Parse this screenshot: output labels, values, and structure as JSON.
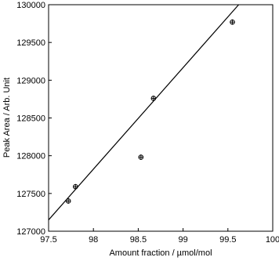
{
  "chart_data": {
    "type": "scatter",
    "xlabel": "Amount fraction / µmol/mol",
    "ylabel": "Peak Area / Arb. Unit",
    "xlim": [
      97.5,
      100
    ],
    "xticks": [
      97.5,
      98,
      98.5,
      99,
      99.5,
      100
    ],
    "ylim": [
      127000,
      130000
    ],
    "yticks": [
      127000,
      127500,
      128000,
      128500,
      129000,
      129500,
      130000
    ],
    "grid": false,
    "series": [
      {
        "type": "scatter",
        "color": "#000000",
        "x": [
          97.72,
          97.8,
          98.53,
          98.67,
          99.55
        ],
        "values": [
          127400,
          127590,
          127980,
          128760,
          129770
        ],
        "xerr": [
          0.02,
          0.02,
          0.02,
          0.02,
          0.02
        ],
        "yerr": [
          35,
          35,
          35,
          35,
          35
        ]
      },
      {
        "type": "line",
        "color": "#000000",
        "x": [
          97.5,
          99.62
        ],
        "values": [
          127150,
          130000
        ]
      }
    ]
  }
}
